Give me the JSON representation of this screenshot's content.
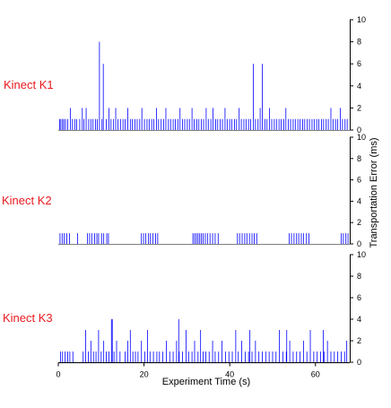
{
  "chart_data": {
    "type": "bar",
    "xlabel": "Experiment Time (s)",
    "ylabel": "Transportation Error (ms)",
    "xlim": [
      0,
      68
    ],
    "ylim": [
      0,
      10
    ],
    "x_ticks": [
      0,
      20,
      40,
      60
    ],
    "y_ticks": [
      0,
      2,
      4,
      6,
      8,
      10
    ],
    "grid": false,
    "bar_color": "#0000ff",
    "label_color": "#e8191e",
    "panels": [
      {
        "name": "Kinect K1",
        "events": [
          [
            0.3,
            1
          ],
          [
            0.6,
            1
          ],
          [
            1.0,
            1
          ],
          [
            1.3,
            1
          ],
          [
            1.7,
            1
          ],
          [
            2.2,
            1
          ],
          [
            2.8,
            2
          ],
          [
            3.3,
            1
          ],
          [
            3.9,
            1
          ],
          [
            4.3,
            1
          ],
          [
            5.0,
            1
          ],
          [
            5.6,
            2
          ],
          [
            6.0,
            1
          ],
          [
            6.5,
            2
          ],
          [
            7.1,
            1
          ],
          [
            7.6,
            1
          ],
          [
            8.1,
            1
          ],
          [
            8.7,
            1
          ],
          [
            9.1,
            1
          ],
          [
            9.6,
            8
          ],
          [
            10.2,
            1
          ],
          [
            10.5,
            6
          ],
          [
            11.2,
            1
          ],
          [
            11.8,
            2
          ],
          [
            12.3,
            1
          ],
          [
            12.9,
            1
          ],
          [
            13.4,
            2
          ],
          [
            13.9,
            1
          ],
          [
            14.5,
            1
          ],
          [
            15.1,
            1
          ],
          [
            15.6,
            1
          ],
          [
            16.2,
            2
          ],
          [
            16.8,
            1
          ],
          [
            17.3,
            1
          ],
          [
            17.9,
            1
          ],
          [
            18.4,
            1
          ],
          [
            19.0,
            1
          ],
          [
            19.5,
            2
          ],
          [
            20.1,
            1
          ],
          [
            20.7,
            1
          ],
          [
            21.2,
            1
          ],
          [
            21.8,
            1
          ],
          [
            22.3,
            1
          ],
          [
            22.9,
            2
          ],
          [
            23.4,
            1
          ],
          [
            24.0,
            1
          ],
          [
            24.6,
            1
          ],
          [
            25.1,
            2
          ],
          [
            25.7,
            1
          ],
          [
            26.2,
            1
          ],
          [
            26.8,
            1
          ],
          [
            27.3,
            1
          ],
          [
            27.9,
            1
          ],
          [
            28.4,
            2
          ],
          [
            29.0,
            1
          ],
          [
            29.5,
            1
          ],
          [
            30.1,
            1
          ],
          [
            30.6,
            1
          ],
          [
            31.2,
            2
          ],
          [
            31.7,
            1
          ],
          [
            32.3,
            1
          ],
          [
            32.8,
            1
          ],
          [
            33.4,
            1
          ],
          [
            33.9,
            1
          ],
          [
            34.5,
            2
          ],
          [
            35.0,
            1
          ],
          [
            35.6,
            1
          ],
          [
            36.1,
            2
          ],
          [
            36.7,
            1
          ],
          [
            37.2,
            1
          ],
          [
            37.8,
            1
          ],
          [
            38.3,
            1
          ],
          [
            38.9,
            2
          ],
          [
            39.4,
            1
          ],
          [
            40.0,
            1
          ],
          [
            40.5,
            1
          ],
          [
            41.1,
            1
          ],
          [
            41.6,
            1
          ],
          [
            42.2,
            2
          ],
          [
            42.7,
            1
          ],
          [
            43.3,
            1
          ],
          [
            43.8,
            1
          ],
          [
            44.4,
            1
          ],
          [
            44.9,
            1
          ],
          [
            45.5,
            6
          ],
          [
            46.0,
            1
          ],
          [
            46.6,
            1
          ],
          [
            47.1,
            2
          ],
          [
            47.6,
            6
          ],
          [
            48.2,
            1
          ],
          [
            48.7,
            1
          ],
          [
            49.3,
            2
          ],
          [
            49.8,
            1
          ],
          [
            50.4,
            1
          ],
          [
            50.9,
            1
          ],
          [
            51.5,
            1
          ],
          [
            52.0,
            1
          ],
          [
            52.6,
            1
          ],
          [
            53.1,
            2
          ],
          [
            53.7,
            1
          ],
          [
            54.2,
            1
          ],
          [
            54.8,
            1
          ],
          [
            55.3,
            1
          ],
          [
            55.9,
            1
          ],
          [
            56.4,
            1
          ],
          [
            57.0,
            1
          ],
          [
            57.5,
            1
          ],
          [
            58.1,
            1
          ],
          [
            58.6,
            1
          ],
          [
            59.2,
            1
          ],
          [
            59.7,
            1
          ],
          [
            60.3,
            1
          ],
          [
            60.8,
            1
          ],
          [
            61.4,
            1
          ],
          [
            61.9,
            1
          ],
          [
            62.5,
            1
          ],
          [
            63.0,
            1
          ],
          [
            63.6,
            2
          ],
          [
            64.1,
            1
          ],
          [
            64.7,
            1
          ],
          [
            65.2,
            1
          ],
          [
            65.8,
            2
          ],
          [
            66.3,
            1
          ],
          [
            66.9,
            1
          ],
          [
            67.4,
            1
          ]
        ]
      },
      {
        "name": "Kinect K2",
        "events": [
          [
            0.4,
            1
          ],
          [
            0.9,
            1
          ],
          [
            1.4,
            1
          ],
          [
            2.0,
            1
          ],
          [
            2.6,
            1
          ],
          [
            4.5,
            1
          ],
          [
            6.8,
            1
          ],
          [
            7.3,
            1
          ],
          [
            7.8,
            1
          ],
          [
            8.5,
            1
          ],
          [
            9.0,
            1
          ],
          [
            9.4,
            1
          ],
          [
            10.1,
            1
          ],
          [
            10.6,
            1
          ],
          [
            11.3,
            1
          ],
          [
            11.7,
            1
          ],
          [
            19.4,
            1
          ],
          [
            19.9,
            1
          ],
          [
            20.4,
            1
          ],
          [
            21.0,
            1
          ],
          [
            21.5,
            1
          ],
          [
            22.1,
            1
          ],
          [
            22.7,
            1
          ],
          [
            23.2,
            1
          ],
          [
            31.4,
            1
          ],
          [
            31.8,
            1
          ],
          [
            32.2,
            1
          ],
          [
            32.6,
            1
          ],
          [
            33.0,
            1
          ],
          [
            33.4,
            1
          ],
          [
            33.8,
            1
          ],
          [
            34.3,
            1
          ],
          [
            34.8,
            1
          ],
          [
            35.4,
            1
          ],
          [
            36.0,
            1
          ],
          [
            36.6,
            1
          ],
          [
            37.3,
            1
          ],
          [
            41.8,
            1
          ],
          [
            42.3,
            1
          ],
          [
            42.9,
            1
          ],
          [
            43.5,
            1
          ],
          [
            44.0,
            1
          ],
          [
            44.6,
            1
          ],
          [
            45.2,
            1
          ],
          [
            45.7,
            1
          ],
          [
            46.3,
            1
          ],
          [
            53.9,
            1
          ],
          [
            54.4,
            1
          ],
          [
            55.0,
            1
          ],
          [
            55.6,
            1
          ],
          [
            56.1,
            1
          ],
          [
            56.7,
            1
          ],
          [
            57.2,
            1
          ],
          [
            57.9,
            1
          ],
          [
            58.5,
            1
          ],
          [
            66.0,
            1
          ],
          [
            66.5,
            1
          ],
          [
            67.1,
            1
          ],
          [
            67.6,
            1
          ]
        ]
      },
      {
        "name": "Kinect K3",
        "events": [
          [
            0.5,
            1
          ],
          [
            1.0,
            1
          ],
          [
            1.6,
            1
          ],
          [
            2.2,
            1
          ],
          [
            2.7,
            1
          ],
          [
            3.4,
            1
          ],
          [
            5.8,
            1
          ],
          [
            6.4,
            3
          ],
          [
            7.0,
            1
          ],
          [
            7.6,
            2
          ],
          [
            8.2,
            1
          ],
          [
            8.8,
            1
          ],
          [
            9.4,
            3
          ],
          [
            10.0,
            1
          ],
          [
            10.6,
            2
          ],
          [
            11.2,
            1
          ],
          [
            11.8,
            1
          ],
          [
            12.4,
            4
          ],
          [
            13.0,
            1
          ],
          [
            13.6,
            2
          ],
          [
            14.4,
            1
          ],
          [
            15.6,
            1
          ],
          [
            16.2,
            2
          ],
          [
            16.8,
            3
          ],
          [
            17.4,
            1
          ],
          [
            18.0,
            1
          ],
          [
            18.6,
            1
          ],
          [
            19.4,
            2
          ],
          [
            20.2,
            1
          ],
          [
            20.8,
            3
          ],
          [
            21.4,
            1
          ],
          [
            22.2,
            1
          ],
          [
            23.0,
            1
          ],
          [
            23.6,
            1
          ],
          [
            24.4,
            1
          ],
          [
            25.2,
            2
          ],
          [
            26.0,
            1
          ],
          [
            26.8,
            1
          ],
          [
            27.6,
            2
          ],
          [
            28.2,
            1
          ],
          [
            29.0,
            1
          ],
          [
            29.8,
            3
          ],
          [
            30.4,
            1
          ],
          [
            31.2,
            1
          ],
          [
            31.8,
            2
          ],
          [
            32.6,
            1
          ],
          [
            33.2,
            3
          ],
          [
            33.8,
            1
          ],
          [
            34.4,
            1
          ],
          [
            35.2,
            1
          ],
          [
            36.0,
            2
          ],
          [
            36.6,
            1
          ],
          [
            37.4,
            1
          ],
          [
            38.2,
            2
          ],
          [
            39.0,
            1
          ],
          [
            39.8,
            1
          ],
          [
            40.6,
            1
          ],
          [
            41.4,
            3
          ],
          [
            42.0,
            1
          ],
          [
            42.8,
            2
          ],
          [
            43.6,
            1
          ],
          [
            44.4,
            1
          ],
          [
            45.2,
            1
          ],
          [
            46.0,
            2
          ],
          [
            46.8,
            1
          ],
          [
            47.6,
            1
          ],
          [
            48.4,
            1
          ],
          [
            49.2,
            1
          ],
          [
            50.0,
            1
          ],
          [
            50.8,
            1
          ],
          [
            51.6,
            3
          ],
          [
            52.4,
            1
          ],
          [
            53.2,
            1
          ],
          [
            54.0,
            2
          ],
          [
            54.8,
            1
          ],
          [
            55.6,
            1
          ],
          [
            56.4,
            1
          ],
          [
            57.2,
            2
          ],
          [
            58.0,
            1
          ],
          [
            58.8,
            3
          ],
          [
            59.6,
            1
          ],
          [
            60.4,
            1
          ],
          [
            61.2,
            1
          ],
          [
            62.0,
            1
          ],
          [
            62.8,
            2
          ],
          [
            63.6,
            1
          ],
          [
            64.4,
            1
          ],
          [
            65.2,
            1
          ],
          [
            66.0,
            1
          ],
          [
            66.8,
            1
          ],
          [
            67.3,
            2
          ]
        ],
        "peaks": [
          [
            12.6,
            4
          ],
          [
            28.1,
            4
          ],
          [
            44.7,
            3
          ],
          [
            53.3,
            3
          ],
          [
            61.8,
            3
          ]
        ]
      }
    ]
  }
}
